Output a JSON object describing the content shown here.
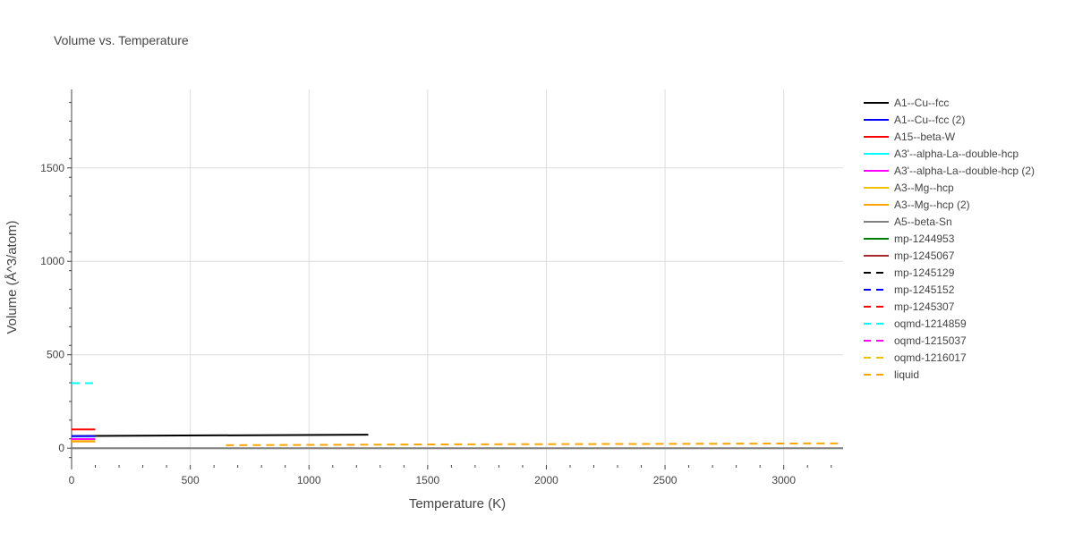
{
  "chart_data": {
    "type": "line",
    "title": "Volume vs. Temperature",
    "xlabel": "Temperature (K)",
    "ylabel": "Volume (Å^3/atom)",
    "xlim": [
      0,
      3250
    ],
    "ylim": [
      -90,
      1920
    ],
    "x_ticks": [
      0,
      500,
      1000,
      1500,
      2000,
      2500,
      3000
    ],
    "y_ticks": [
      0,
      500,
      1000,
      1500
    ],
    "grid": true,
    "legend_position": "right",
    "series": [
      {
        "name": "A1--Cu--fcc",
        "color": "#000000",
        "dash": "solid",
        "x": [
          0,
          1250
        ],
        "y": [
          65,
          72
        ]
      },
      {
        "name": "A1--Cu--fcc (2)",
        "color": "#0000ff",
        "dash": "solid",
        "x": [
          0,
          100
        ],
        "y": [
          64,
          64
        ]
      },
      {
        "name": "A15--beta-W",
        "color": "#ff0000",
        "dash": "solid",
        "x": [
          0,
          100
        ],
        "y": [
          100,
          100
        ]
      },
      {
        "name": "A3'--alpha-La--double-hcp",
        "color": "#00ffff",
        "dash": "solid",
        "x": [
          0,
          100
        ],
        "y": [
          50,
          50
        ]
      },
      {
        "name": "A3'--alpha-La--double-hcp (2)",
        "color": "#ff00ff",
        "dash": "solid",
        "x": [
          0,
          100
        ],
        "y": [
          49,
          49
        ]
      },
      {
        "name": "A3--Mg--hcp",
        "color": "#f0c000",
        "dash": "solid",
        "x": [
          0,
          100
        ],
        "y": [
          38,
          38
        ]
      },
      {
        "name": "A3--Mg--hcp (2)",
        "color": "#ffa500",
        "dash": "solid",
        "x": [
          0,
          100
        ],
        "y": [
          36,
          36
        ]
      },
      {
        "name": "A5--beta-Sn",
        "color": "#808080",
        "dash": "solid",
        "x": [
          0,
          3250
        ],
        "y": [
          0,
          0
        ]
      },
      {
        "name": "mp-1244953",
        "color": "#008000",
        "dash": "solid",
        "x": [],
        "y": []
      },
      {
        "name": "mp-1245067",
        "color": "#a52a2a",
        "dash": "solid",
        "x": [],
        "y": []
      },
      {
        "name": "mp-1245129",
        "color": "#000000",
        "dash": "dash",
        "x": [],
        "y": []
      },
      {
        "name": "mp-1245152",
        "color": "#0000ff",
        "dash": "dash",
        "x": [],
        "y": []
      },
      {
        "name": "mp-1245307",
        "color": "#ff0000",
        "dash": "dash",
        "x": [],
        "y": []
      },
      {
        "name": "oqmd-1214859",
        "color": "#00ffff",
        "dash": "dash",
        "x": [
          0,
          100
        ],
        "y": [
          348,
          348
        ]
      },
      {
        "name": "oqmd-1215037",
        "color": "#ff00ff",
        "dash": "dash",
        "x": [],
        "y": []
      },
      {
        "name": "oqmd-1216017",
        "color": "#f0c000",
        "dash": "dash",
        "x": [],
        "y": []
      },
      {
        "name": "liquid",
        "color": "#ffa500",
        "dash": "dash",
        "x": [
          650,
          1500,
          2500,
          3250
        ],
        "y": [
          16,
          20,
          23,
          26
        ]
      }
    ]
  }
}
